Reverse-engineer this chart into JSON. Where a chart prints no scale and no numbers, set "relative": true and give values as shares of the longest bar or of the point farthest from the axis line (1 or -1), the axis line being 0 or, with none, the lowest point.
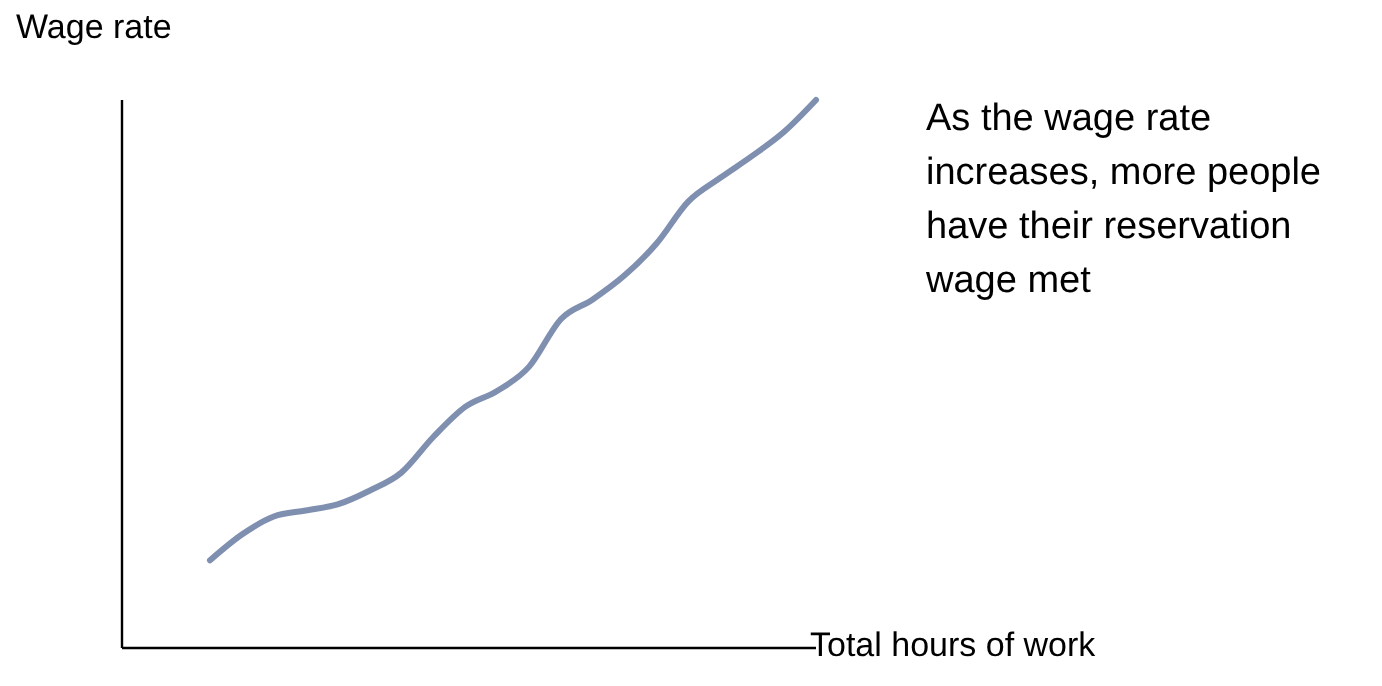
{
  "chart_data": {
    "type": "line",
    "relative": true,
    "ylabel": "Wage rate",
    "xlabel": "Total hours of work",
    "annotations": [
      "As the wage rate increases, more people have their reservation wage met"
    ],
    "categories": [
      null,
      null,
      null,
      null,
      null,
      null,
      null,
      null,
      null,
      null,
      null,
      null,
      null,
      null,
      null,
      null,
      null,
      null,
      null,
      null
    ],
    "series": [
      {
        "color": "#7f8fb0",
        "values": [
          0.16,
          0.207,
          0.24,
          0.251,
          0.262,
          0.287,
          0.32,
          0.385,
          0.44,
          0.469,
          0.513,
          0.6,
          0.636,
          0.68,
          0.738,
          0.815,
          0.858,
          0.898,
          0.942,
          1
        ]
      }
    ],
    "grid": false,
    "legend": false,
    "marker": "none",
    "line_style": "solid"
  }
}
